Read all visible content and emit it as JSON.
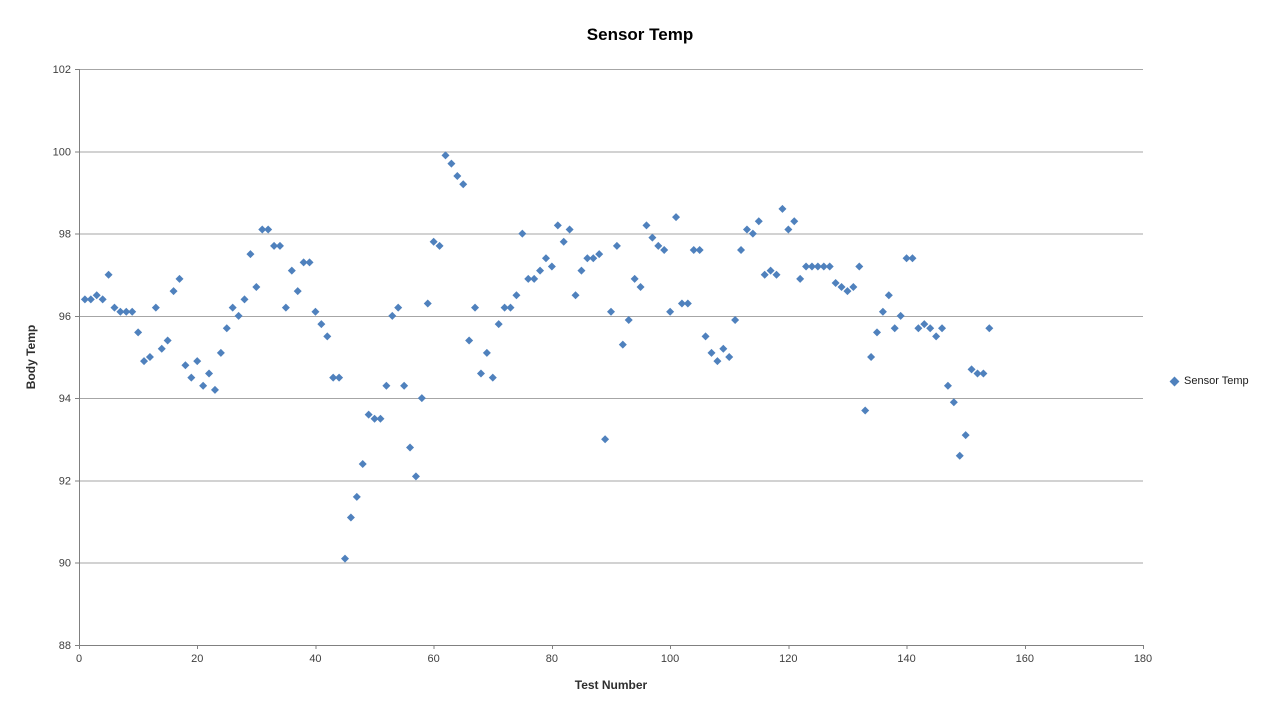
{
  "title": "Sensor Temp",
  "legend": {
    "label": "Sensor Temp"
  },
  "colors": {
    "marker": "#4f81bd",
    "gridline": "#a6a6a6",
    "axis_line": "#808080",
    "tick_label": "#404040",
    "title_text": "#000000",
    "background": "#ffffff"
  },
  "chart_data": {
    "type": "scatter",
    "title": "Sensor Temp",
    "xlabel": "Test Number",
    "ylabel": "Body Temp",
    "xlim": [
      0,
      180
    ],
    "ylim": [
      88,
      102
    ],
    "x_ticks": [
      0,
      20,
      40,
      60,
      80,
      100,
      120,
      140,
      160,
      180
    ],
    "y_ticks": [
      88,
      90,
      92,
      94,
      96,
      98,
      100,
      102
    ],
    "grid": "horizontal",
    "legend_position": "right",
    "series": [
      {
        "name": "Sensor Temp",
        "marker": "diamond",
        "color": "#4f81bd",
        "x": [
          1,
          2,
          3,
          4,
          5,
          6,
          7,
          8,
          9,
          10,
          11,
          12,
          13,
          14,
          15,
          16,
          17,
          18,
          19,
          20,
          21,
          22,
          23,
          24,
          25,
          26,
          27,
          28,
          29,
          30,
          31,
          32,
          33,
          34,
          35,
          36,
          37,
          38,
          39,
          40,
          41,
          42,
          43,
          44,
          45,
          46,
          47,
          48,
          49,
          50,
          51,
          52,
          53,
          54,
          55,
          56,
          57,
          58,
          59,
          60,
          61,
          62,
          63,
          64,
          65,
          66,
          67,
          68,
          69,
          70,
          71,
          72,
          73,
          74,
          75,
          76,
          77,
          78,
          79,
          80,
          81,
          82,
          83,
          84,
          85,
          86,
          87,
          88,
          89,
          90,
          91,
          92,
          93,
          94,
          95,
          96,
          97,
          98,
          99,
          100,
          101,
          102,
          103,
          104,
          105,
          106,
          107,
          108,
          109,
          110,
          111,
          112,
          113,
          114,
          115,
          116,
          117,
          118,
          119,
          120,
          121,
          122,
          123,
          124,
          125,
          126,
          127,
          128,
          129,
          130,
          131,
          132,
          133,
          134,
          135,
          136,
          137,
          138,
          139,
          140,
          141,
          142,
          143,
          144,
          145,
          146,
          147,
          148,
          149,
          150,
          151,
          152,
          153,
          154
        ],
        "y": [
          96.4,
          96.4,
          96.5,
          96.4,
          97.0,
          96.2,
          96.1,
          96.1,
          96.1,
          95.6,
          94.9,
          95.0,
          96.2,
          95.2,
          95.4,
          96.6,
          96.9,
          94.8,
          94.5,
          94.9,
          94.3,
          94.6,
          94.2,
          95.1,
          95.7,
          96.2,
          96.0,
          96.4,
          97.5,
          96.7,
          98.1,
          98.1,
          97.7,
          97.7,
          96.2,
          97.1,
          96.6,
          97.3,
          97.3,
          96.1,
          95.8,
          95.5,
          94.5,
          94.5,
          90.1,
          91.1,
          91.6,
          92.4,
          93.6,
          93.5,
          93.5,
          94.3,
          96.0,
          96.2,
          94.3,
          92.8,
          92.1,
          94.0,
          96.3,
          97.8,
          97.7,
          99.9,
          99.7,
          99.4,
          99.2,
          95.4,
          96.2,
          94.6,
          95.1,
          94.5,
          95.8,
          96.2,
          96.2,
          96.5,
          98.0,
          96.9,
          96.9,
          97.1,
          97.4,
          97.2,
          98.2,
          97.8,
          98.1,
          96.5,
          97.1,
          97.4,
          97.4,
          97.5,
          93.0,
          96.1,
          97.7,
          95.3,
          95.9,
          96.9,
          96.7,
          98.2,
          97.9,
          97.7,
          97.6,
          96.1,
          98.4,
          96.3,
          96.3,
          97.6,
          97.6,
          95.5,
          95.1,
          94.9,
          95.2,
          95.0,
          95.9,
          97.6,
          98.1,
          98.0,
          98.3,
          97.0,
          97.1,
          97.0,
          98.6,
          98.1,
          98.3,
          96.9,
          97.2,
          97.2,
          97.2,
          97.2,
          97.2,
          96.8,
          96.7,
          96.6,
          96.7,
          97.2,
          93.7,
          95.0,
          95.6,
          96.1,
          96.5,
          95.7,
          96.0,
          97.4,
          97.4,
          95.7,
          95.8,
          95.7,
          95.5,
          95.7,
          94.3,
          93.9,
          92.6,
          93.1,
          94.7,
          94.6,
          94.6,
          95.7
        ]
      }
    ]
  }
}
